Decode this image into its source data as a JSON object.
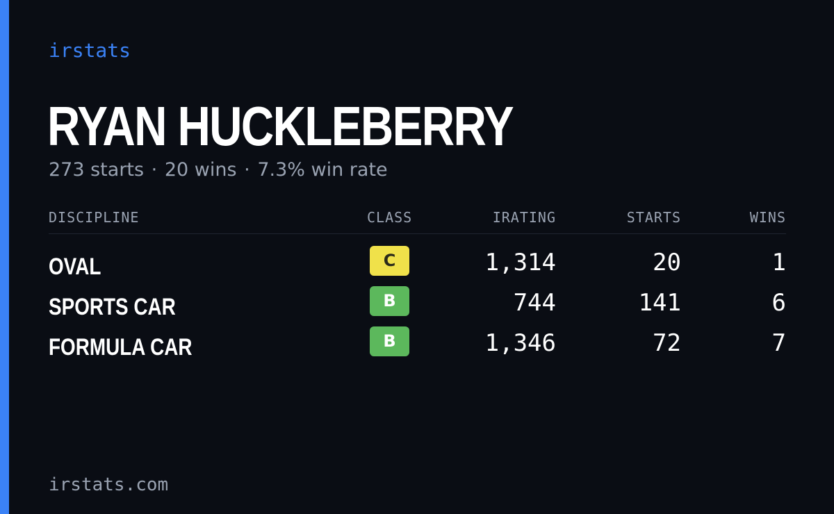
{
  "brand": "irstats",
  "driver": {
    "name": "RYAN HUCKLEBERRY"
  },
  "summary": {
    "starts": "273 starts",
    "wins": "20 wins",
    "win_rate": "7.3% win rate",
    "separator": "·"
  },
  "table": {
    "headers": {
      "discipline": "DISCIPLINE",
      "class": "CLASS",
      "irating": "IRATING",
      "starts": "STARTS",
      "wins": "WINS"
    },
    "rows": [
      {
        "discipline": "OVAL",
        "class": "C",
        "irating": "1,314",
        "starts": "20",
        "wins": "1"
      },
      {
        "discipline": "SPORTS CAR",
        "class": "B",
        "irating": "744",
        "starts": "141",
        "wins": "6"
      },
      {
        "discipline": "FORMULA CAR",
        "class": "B",
        "irating": "1,346",
        "starts": "72",
        "wins": "7"
      }
    ]
  },
  "footer": {
    "url": "irstats.com"
  },
  "colors": {
    "background": "#0a0d14",
    "accent": "#3b82f6",
    "muted_text": "#9aa3b2",
    "class_c": "#f0e14a",
    "class_b": "#5cb85c"
  }
}
